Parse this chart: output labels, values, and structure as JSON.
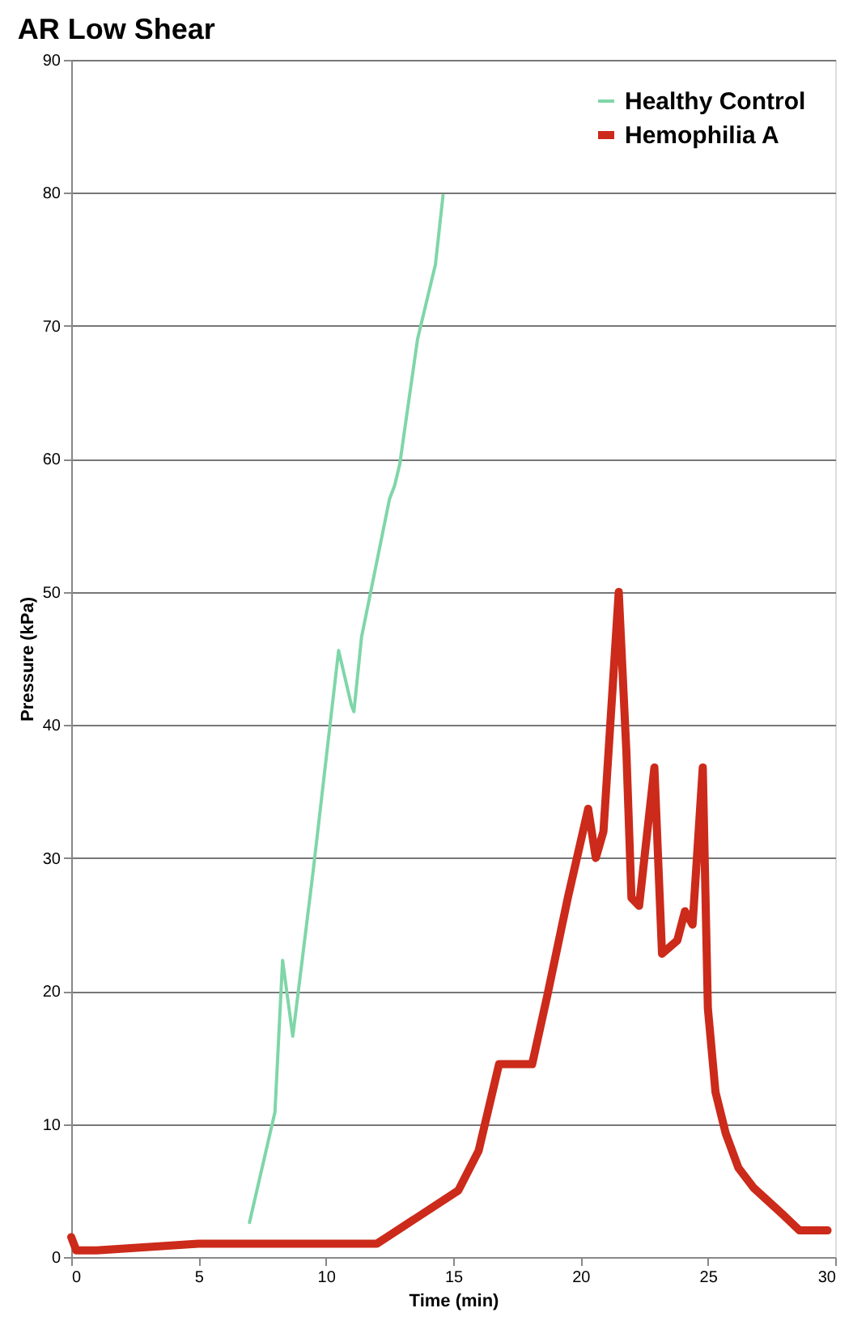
{
  "chart_data": {
    "type": "line",
    "title": "AR Low Shear",
    "xlabel": "Time (min)",
    "ylabel": "Pressure (kPa)",
    "xlim": [
      0,
      30
    ],
    "xticks": [
      0,
      5,
      10,
      15,
      20,
      25,
      30
    ],
    "ylim": [
      0,
      90
    ],
    "yticks": [
      0,
      10,
      20,
      30,
      40,
      50,
      60,
      70,
      80,
      90
    ],
    "grid": "y",
    "legend": "top right",
    "line_style": "solid",
    "marker": "none",
    "series": [
      {
        "name": "Healthy Control",
        "color": "#7fd6a8",
        "x": [
          7,
          8,
          8.3,
          8.7,
          9.5,
          10.5,
          11,
          11.1,
          11.4,
          12.5,
          12.7,
          12.9,
          13.6,
          14.3,
          14.6
        ],
        "values": [
          2.6,
          10.9,
          22.3,
          16.6,
          29,
          45.6,
          41.5,
          41,
          46.6,
          57,
          58,
          59.6,
          69,
          74.6,
          79.8
        ]
      },
      {
        "name": "Hemophilia A",
        "color": "#cc2a1a",
        "x": [
          0,
          0.2,
          1,
          5,
          8,
          12,
          15.2,
          16,
          16.8,
          18.1,
          18.7,
          19.5,
          20.3,
          20.6,
          20.9,
          21.5,
          21.8,
          22,
          22.3,
          22.9,
          23.2,
          23.8,
          24.1,
          24.4,
          24.8,
          25,
          25.3,
          25.7,
          26.2,
          26.8,
          28,
          28.6,
          29.7
        ],
        "values": [
          1.5,
          0.5,
          0.5,
          1,
          1,
          1,
          5,
          8,
          14.5,
          14.5,
          19.7,
          27,
          33.7,
          30,
          32,
          50,
          38,
          27,
          26.4,
          36.8,
          22.8,
          23.8,
          26,
          25,
          36.8,
          18.7,
          12.4,
          9.3,
          6.7,
          5.2,
          3.1,
          2,
          2
        ]
      }
    ]
  }
}
